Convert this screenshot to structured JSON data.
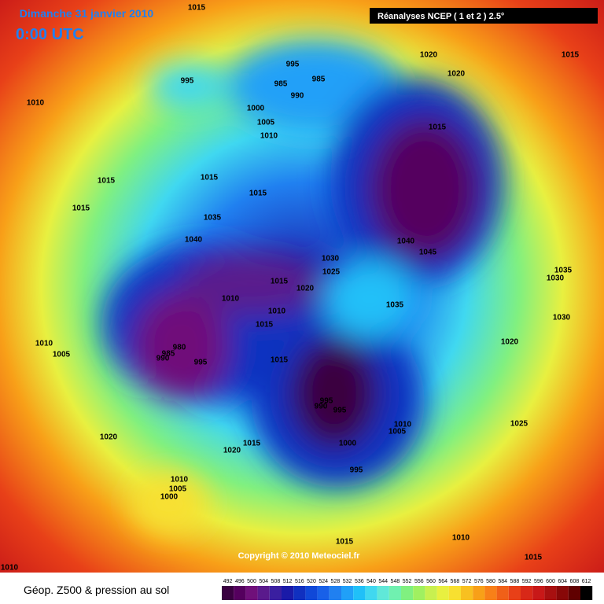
{
  "header": {
    "title": "Dimanche 31 janvier 2010",
    "time": "0:00 UTC",
    "source": "Réanalyses NCEP ( 1 et 2 ) 2.5°"
  },
  "copyright": "Copyright © 2010 Meteociel.fr",
  "footer": {
    "caption": "Géop. Z500 & pression au sol"
  },
  "isobar_labels": [
    1015,
    995,
    995,
    985,
    985,
    990,
    1020,
    1015,
    1020,
    1010,
    1000,
    1005,
    1010,
    1015,
    1015,
    1015,
    1015,
    1015,
    1035,
    1040,
    1040,
    1045,
    1030,
    1025,
    1015,
    1020,
    1035,
    1030,
    1010,
    1010,
    1035,
    1015,
    1030,
    1010,
    1020,
    1005,
    980,
    985,
    990,
    995,
    1015,
    995,
    990,
    995,
    1010,
    1005,
    1025,
    1000,
    1020,
    1015,
    1020,
    995,
    1010,
    1005,
    1000,
    1015,
    1010,
    1015,
    1010
  ],
  "color_scale": {
    "labels": [
      492,
      496,
      500,
      504,
      508,
      512,
      516,
      520,
      524,
      528,
      532,
      536,
      540,
      544,
      548,
      552,
      556,
      560,
      564,
      568,
      572,
      576,
      580,
      584,
      588,
      592,
      596,
      600,
      604,
      608,
      612
    ],
    "colors": [
      "#3a0040",
      "#55005e",
      "#70107a",
      "#5a1a8c",
      "#3a1fa0",
      "#1a1aa8",
      "#1030c0",
      "#1048d8",
      "#1860e8",
      "#2080f0",
      "#20a0f8",
      "#20c0f8",
      "#40d8f0",
      "#60e8d8",
      "#70f0b0",
      "#80f080",
      "#a0f060",
      "#c8f050",
      "#e8f040",
      "#f8e030",
      "#f8c020",
      "#f8a018",
      "#f88018",
      "#f06018",
      "#e84018",
      "#d82818",
      "#c81818",
      "#a81010",
      "#880808",
      "#600000",
      "#000000"
    ]
  }
}
